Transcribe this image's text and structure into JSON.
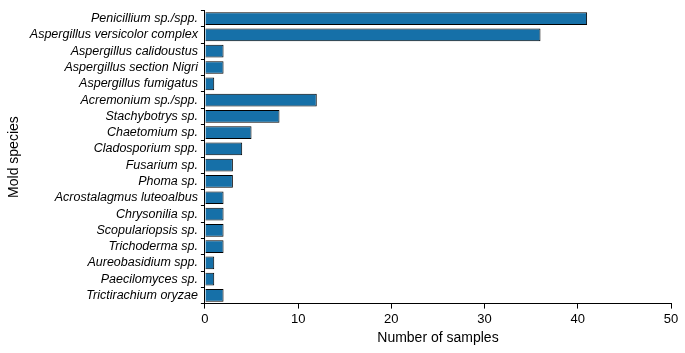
{
  "chart_data": {
    "type": "bar",
    "orientation": "horizontal",
    "x_label": "Number of samples",
    "y_label": "Mold species",
    "categories": [
      "Penicillium sp./spp.",
      "Aspergillus versicolor complex",
      "Aspergillus calidoustus",
      "Aspergillus section Nigri",
      "Aspergillus fumigatus",
      "Acremonium sp./spp.",
      "Stachybotrys sp.",
      "Chaetomium sp.",
      "Cladosporium spp.",
      "Fusarium sp.",
      "Phoma sp.",
      "Acrostalagmus luteoalbus",
      "Chrysonilia sp.",
      "Scopulariopsis sp.",
      "Trichoderma sp.",
      "Aureobasidium spp.",
      "Paecilomyces sp.",
      "Trictirachium oryzae"
    ],
    "values": [
      41,
      36,
      2,
      2,
      1,
      12,
      8,
      5,
      4,
      3,
      3,
      2,
      2,
      2,
      2,
      1,
      1,
      2
    ],
    "color": "#1670a8",
    "xlim": [
      0,
      50
    ],
    "xticks": [
      0,
      10,
      20,
      30,
      40,
      50
    ],
    "grid": false
  }
}
